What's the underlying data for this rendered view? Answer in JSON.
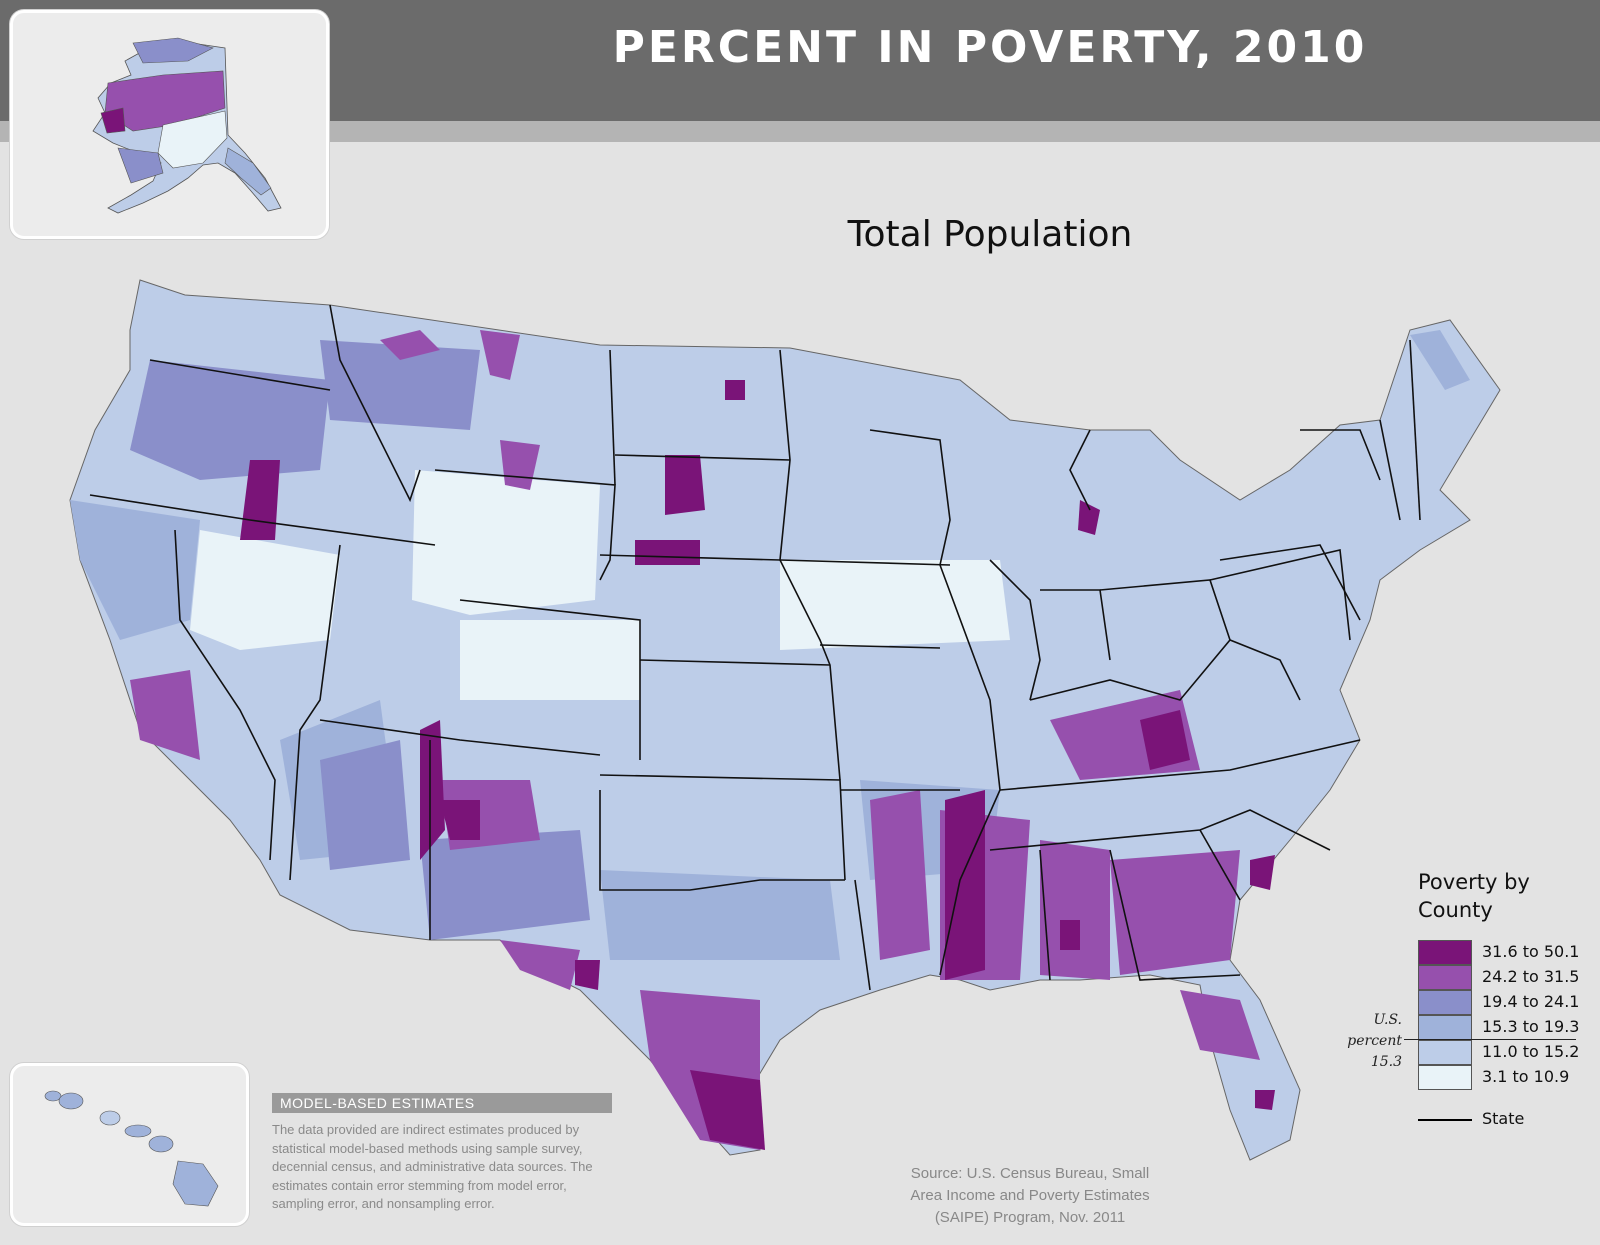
{
  "header": {
    "title": "PERCENT IN POVERTY, 2010"
  },
  "map": {
    "subtitle": "Total Population",
    "colors": {
      "c1": "#7a1478",
      "c2": "#9650ad",
      "c3": "#8a8fca",
      "c4": "#9fb2da",
      "c5": "#bdcde8",
      "c6": "#e9f3f8",
      "state_border": "#111111",
      "background": "#e3e3e3"
    }
  },
  "legend": {
    "title_line1": "Poverty by",
    "title_line2": "County",
    "items": [
      {
        "label": "31.6 to 50.1",
        "color": "#7a1478"
      },
      {
        "label": "24.2 to 31.5",
        "color": "#9650ad"
      },
      {
        "label": "19.4 to 24.1",
        "color": "#8a8fca"
      },
      {
        "label": "15.3 to 19.3",
        "color": "#9fb2da"
      },
      {
        "label": "11.0 to 15.2",
        "color": "#bdcde8"
      },
      {
        "label": "3.1 to 10.9",
        "color": "#e9f3f8"
      }
    ],
    "us_percent_line1": "U.S.",
    "us_percent_line2": "percent",
    "us_percent_value": "15.3",
    "state_label": "State"
  },
  "note": {
    "heading": "MODEL-BASED ESTIMATES",
    "text": "The data provided are indirect estimates produced by statistical model-based methods using sample survey, decennial census, and administrative data sources. The estimates contain error stemming from model error, sampling error, and nonsampling error."
  },
  "source": {
    "line1": "Source: U.S. Census Bureau, Small",
    "line2": "Area Income and Poverty Estimates",
    "line3": "(SAIPE) Program, Nov. 2011"
  }
}
